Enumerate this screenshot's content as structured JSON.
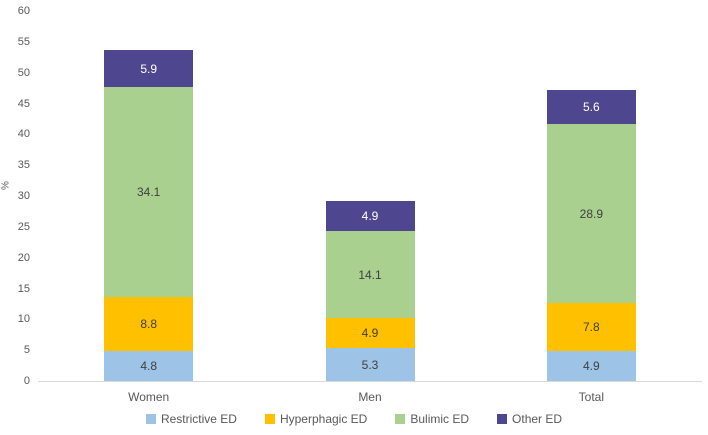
{
  "chart_data": {
    "type": "bar",
    "subtype": "stacked-column",
    "categories": [
      "Women",
      "Men",
      "Total"
    ],
    "series": [
      {
        "name": "Restrictive ED",
        "color": "#9DC3E6",
        "label_color": "#404040",
        "values": [
          4.8,
          5.3,
          4.9
        ]
      },
      {
        "name": "Hyperphagic ED",
        "color": "#FFC000",
        "label_color": "#404040",
        "values": [
          8.8,
          4.9,
          7.8
        ]
      },
      {
        "name": "Bulimic ED",
        "color": "#A9D08E",
        "label_color": "#404040",
        "values": [
          34.1,
          14.1,
          28.9
        ]
      },
      {
        "name": "Other ED",
        "color": "#4E4790",
        "label_color": "#FFFFFF",
        "values": [
          5.9,
          4.9,
          5.6
        ]
      }
    ],
    "title": "",
    "xlabel": "",
    "ylabel": "%",
    "ylim": [
      0,
      60
    ],
    "yticks": [
      0,
      5,
      10,
      15,
      20,
      25,
      30,
      35,
      40,
      45,
      50,
      55,
      60
    ],
    "grid": false,
    "legend_position": "bottom",
    "axis_line_color": "#D9D9D9",
    "tick_label_color": "#595959"
  }
}
